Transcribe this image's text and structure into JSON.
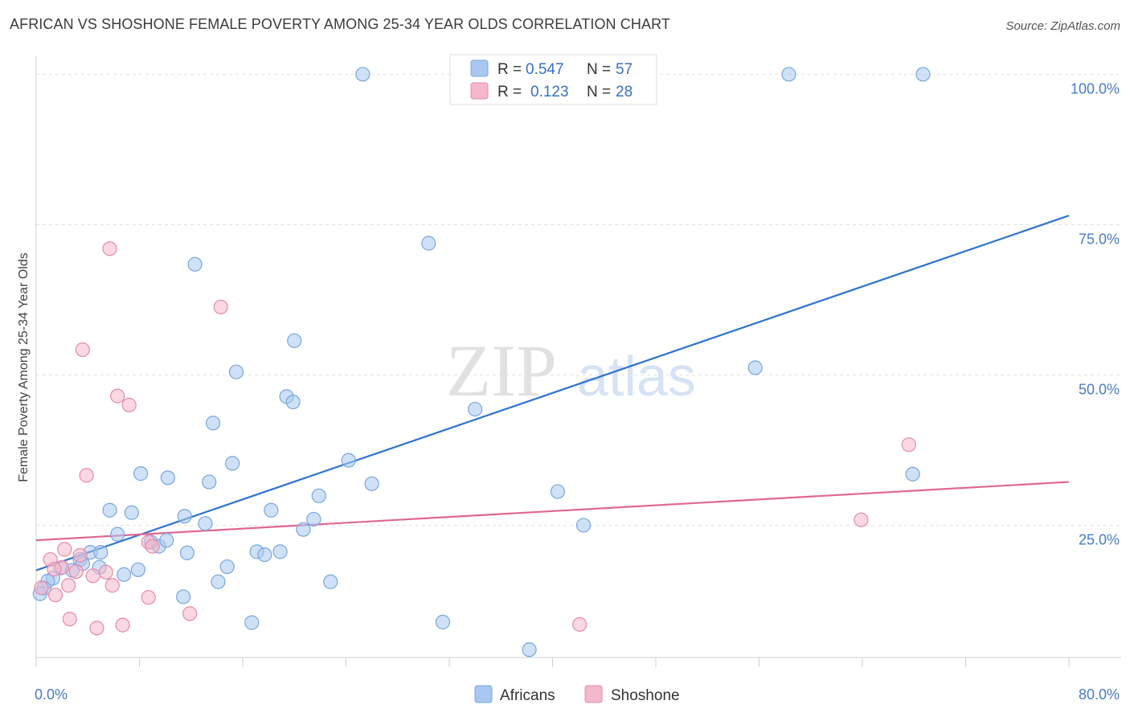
{
  "header": {
    "title": "AFRICAN VS SHOSHONE FEMALE POVERTY AMONG 25-34 YEAR OLDS CORRELATION CHART",
    "source": "Source: ZipAtlas.com"
  },
  "watermark": {
    "zip": "ZIP",
    "atlas": "atlas"
  },
  "legend": {
    "rows": [
      {
        "r_label": "R =",
        "r_value": "0.547",
        "n_label": "N =",
        "n_value": "57",
        "color": "#a8c8f0"
      },
      {
        "r_label": "R =",
        "r_value": "0.123",
        "n_label": "N =",
        "n_value": "28",
        "color": "#f4b8cb"
      }
    ]
  },
  "bottom_legend": [
    {
      "label": "Africans",
      "color": "#a8c8f0"
    },
    {
      "label": "Shoshone",
      "color": "#f4b8cb"
    }
  ],
  "chart_data": {
    "type": "scatter",
    "title": "AFRICAN VS SHOSHONE FEMALE POVERTY AMONG 25-34 YEAR OLDS CORRELATION CHART",
    "xlabel": "",
    "ylabel": "Female Poverty Among 25-34 Year Olds",
    "xlim": [
      0,
      80
    ],
    "ylim": [
      3,
      103
    ],
    "x_tick_labels": [
      {
        "value": 0,
        "label": "0.0%"
      },
      {
        "value": 80,
        "label": "80.0%"
      }
    ],
    "y_tick_labels": [
      {
        "value": 100,
        "label": "100.0%"
      },
      {
        "value": 75,
        "label": "75.0%"
      },
      {
        "value": 50,
        "label": "50.0%"
      },
      {
        "value": 25,
        "label": "25.0%"
      }
    ],
    "grid": true,
    "legend_position": "top-center",
    "series": [
      {
        "name": "Africans",
        "color": "#a8c8f0",
        "stroke": "#7aa6e0",
        "line_color": "#2f74d0",
        "trend": [
          [
            0,
            17.5
          ],
          [
            80,
            76.5
          ]
        ],
        "points": [
          [
            25.3,
            100
          ],
          [
            58.3,
            100
          ],
          [
            68.7,
            100
          ],
          [
            30.4,
            71.9
          ],
          [
            12.3,
            68.4
          ],
          [
            20.0,
            55.7
          ],
          [
            55.7,
            51.2
          ],
          [
            15.5,
            50.5
          ],
          [
            19.4,
            46.4
          ],
          [
            19.9,
            45.5
          ],
          [
            34.0,
            44.3
          ],
          [
            13.7,
            42.0
          ],
          [
            67.9,
            33.5
          ],
          [
            24.2,
            35.8
          ],
          [
            15.2,
            35.3
          ],
          [
            8.1,
            33.6
          ],
          [
            10.2,
            32.9
          ],
          [
            13.4,
            32.2
          ],
          [
            26.0,
            31.9
          ],
          [
            21.9,
            29.9
          ],
          [
            40.4,
            30.6
          ],
          [
            5.7,
            27.5
          ],
          [
            7.4,
            27.1
          ],
          [
            18.2,
            27.5
          ],
          [
            11.5,
            26.5
          ],
          [
            13.1,
            25.3
          ],
          [
            21.5,
            26.0
          ],
          [
            42.4,
            25.0
          ],
          [
            20.7,
            24.3
          ],
          [
            6.3,
            23.5
          ],
          [
            8.9,
            22.2
          ],
          [
            9.5,
            21.5
          ],
          [
            10.1,
            22.5
          ],
          [
            4.2,
            20.5
          ],
          [
            5.0,
            20.5
          ],
          [
            17.1,
            20.6
          ],
          [
            18.9,
            20.6
          ],
          [
            17.7,
            20.1
          ],
          [
            11.7,
            20.4
          ],
          [
            3.4,
            19.3
          ],
          [
            4.9,
            18.0
          ],
          [
            3.6,
            18.6
          ],
          [
            7.9,
            17.6
          ],
          [
            14.8,
            18.1
          ],
          [
            6.8,
            16.8
          ],
          [
            1.9,
            17.9
          ],
          [
            2.8,
            17.5
          ],
          [
            1.3,
            16.2
          ],
          [
            0.9,
            15.7
          ],
          [
            22.8,
            15.6
          ],
          [
            14.1,
            15.6
          ],
          [
            0.6,
            14.5
          ],
          [
            11.4,
            13.1
          ],
          [
            16.7,
            8.8
          ],
          [
            31.5,
            8.9
          ],
          [
            38.2,
            4.3
          ],
          [
            0.3,
            13.6
          ]
        ]
      },
      {
        "name": "Shoshone",
        "color": "#f4b8cb",
        "stroke": "#e88aa8",
        "line_color": "#e06890",
        "trend": [
          [
            0,
            22.5
          ],
          [
            80,
            32.2
          ]
        ],
        "points": [
          [
            5.7,
            71.0
          ],
          [
            14.3,
            61.3
          ],
          [
            3.6,
            54.2
          ],
          [
            6.3,
            46.5
          ],
          [
            7.2,
            45.0
          ],
          [
            67.6,
            38.4
          ],
          [
            3.9,
            33.3
          ],
          [
            63.9,
            25.9
          ],
          [
            8.7,
            22.2
          ],
          [
            9.0,
            21.5
          ],
          [
            2.2,
            21.0
          ],
          [
            3.4,
            20.0
          ],
          [
            1.1,
            19.3
          ],
          [
            2.0,
            18.0
          ],
          [
            5.4,
            17.2
          ],
          [
            3.1,
            17.3
          ],
          [
            4.4,
            16.6
          ],
          [
            1.4,
            17.7
          ],
          [
            2.5,
            15.0
          ],
          [
            5.9,
            15.0
          ],
          [
            0.4,
            14.6
          ],
          [
            1.5,
            13.4
          ],
          [
            8.7,
            13.0
          ],
          [
            11.9,
            10.3
          ],
          [
            2.6,
            9.4
          ],
          [
            4.7,
            7.9
          ],
          [
            6.7,
            8.4
          ],
          [
            42.1,
            8.5
          ]
        ]
      }
    ]
  }
}
